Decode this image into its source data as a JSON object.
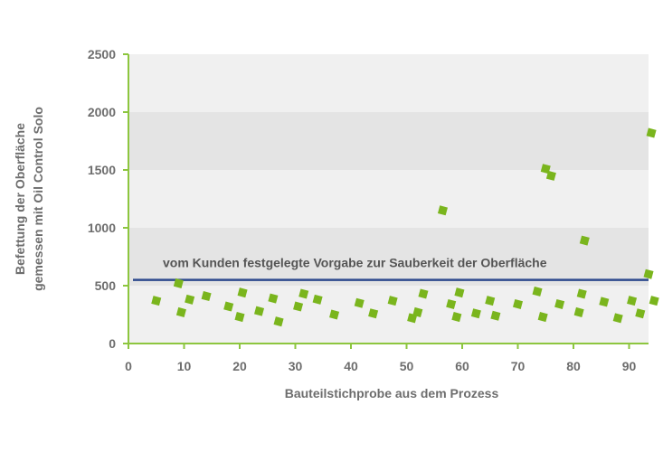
{
  "chart_data": {
    "type": "scatter",
    "xlabel": "Bauteilstichprobe aus dem Prozess",
    "ylabel_lines": [
      "Befettung der Oberfläche",
      "gemessen mit Oil Control Solo"
    ],
    "xlim": [
      0,
      94
    ],
    "ylim": [
      0,
      2500
    ],
    "x_ticks": [
      0,
      10,
      20,
      30,
      40,
      50,
      60,
      70,
      80,
      90
    ],
    "y_ticks": [
      0,
      500,
      1000,
      1500,
      2000,
      2500
    ],
    "grid": "alternating horizontal bands",
    "reference_line": {
      "y": 550,
      "label": "vom Kunden festgelegte Vorgabe zur Sauberkeit der Oberfläche"
    },
    "colors": {
      "points": "#7ab51d",
      "reference_line": "#2e4a8e",
      "axis": "#8dc63f",
      "band_dark": "#e4e4e4",
      "band_light": "#f0f0f0"
    },
    "series": [
      {
        "points": [
          [
            5,
            370
          ],
          [
            9,
            520
          ],
          [
            9.5,
            270
          ],
          [
            11,
            380
          ],
          [
            14,
            410
          ],
          [
            18,
            320
          ],
          [
            20,
            230
          ],
          [
            20.5,
            440
          ],
          [
            23.5,
            280
          ],
          [
            26,
            390
          ],
          [
            27,
            190
          ],
          [
            30.5,
            320
          ],
          [
            31.5,
            430
          ],
          [
            34,
            380
          ],
          [
            37,
            250
          ],
          [
            41.5,
            350
          ],
          [
            44,
            260
          ],
          [
            47.5,
            370
          ],
          [
            51,
            220
          ],
          [
            52,
            270
          ],
          [
            53,
            430
          ],
          [
            56.5,
            1150
          ],
          [
            58,
            340
          ],
          [
            59,
            230
          ],
          [
            59.5,
            440
          ],
          [
            62.5,
            260
          ],
          [
            65,
            370
          ],
          [
            66,
            240
          ],
          [
            70,
            340
          ],
          [
            73.5,
            450
          ],
          [
            74.5,
            230
          ],
          [
            75,
            1510
          ],
          [
            76,
            1450
          ],
          [
            77.5,
            340
          ],
          [
            81,
            270
          ],
          [
            81.5,
            430
          ],
          [
            82,
            890
          ],
          [
            85.5,
            360
          ],
          [
            88,
            220
          ],
          [
            90.5,
            370
          ],
          [
            92,
            260
          ],
          [
            93.5,
            600
          ],
          [
            94,
            1820
          ],
          [
            94.5,
            370
          ]
        ]
      }
    ]
  }
}
